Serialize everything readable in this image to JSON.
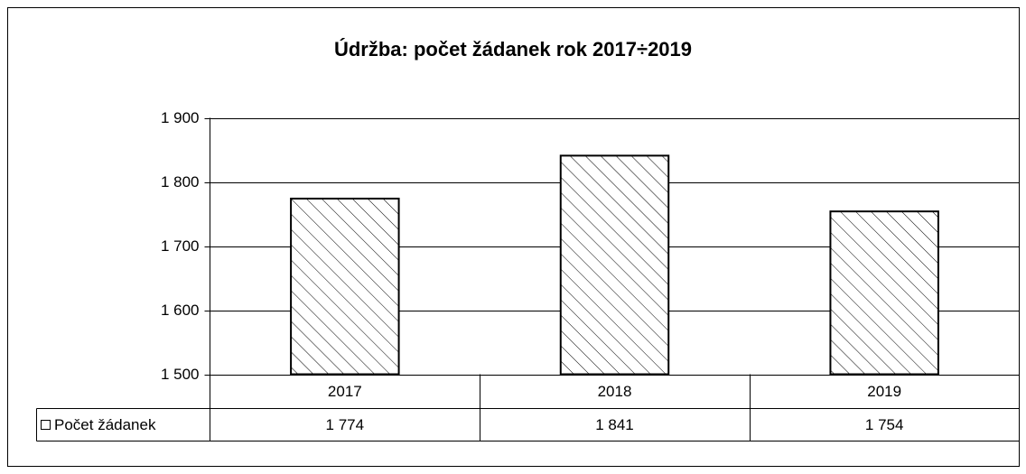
{
  "chart_data": {
    "type": "bar",
    "title": "Údržba: počet žádanek rok 2017÷2019",
    "categories": [
      "2017",
      "2018",
      "2019"
    ],
    "series": [
      {
        "name": "Počet žádanek",
        "color": "#ffffff",
        "values": [
          1774,
          1841,
          1754
        ],
        "value_labels": [
          "1 774",
          "1 841",
          "1 754"
        ]
      }
    ],
    "ylim": [
      1500,
      1900
    ],
    "yticks": [
      {
        "value": 1500,
        "label": "1 500"
      },
      {
        "value": 1600,
        "label": "1 600"
      },
      {
        "value": 1700,
        "label": "1 700"
      },
      {
        "value": 1800,
        "label": "1 800"
      },
      {
        "value": 1900,
        "label": "1 900"
      }
    ],
    "grid": true
  }
}
